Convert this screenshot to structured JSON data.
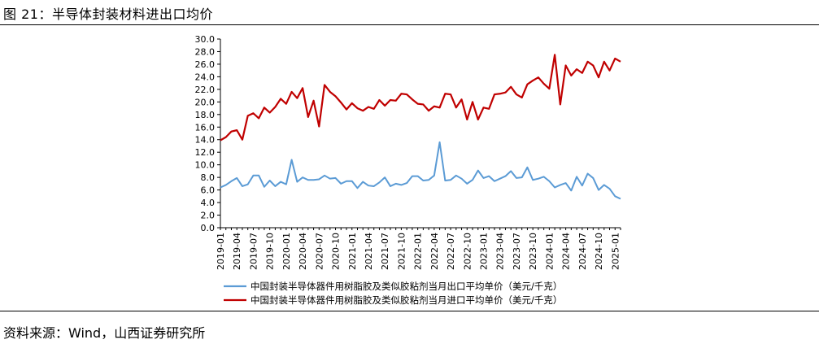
{
  "figure": {
    "title": "图 21：半导体封装材料进出口均价",
    "source": "资料来源：Wind，山西证券研究所"
  },
  "chart_data": {
    "type": "line",
    "title": "",
    "xlabel": "",
    "ylabel": "",
    "ylim": [
      0,
      30
    ],
    "yticks": [
      "0.0",
      "2.0",
      "4.0",
      "6.0",
      "8.0",
      "10.0",
      "12.0",
      "14.0",
      "16.0",
      "18.0",
      "20.0",
      "22.0",
      "24.0",
      "26.0",
      "28.0",
      "30.0"
    ],
    "x_start": "2019-01",
    "x_tick_labels": [
      "2019-01",
      "2019-04",
      "2019-07",
      "2019-10",
      "2020-01",
      "2020-04",
      "2020-07",
      "2020-10",
      "2021-01",
      "2021-04",
      "2021-07",
      "2021-10",
      "2022-01",
      "2022-04",
      "2022-07",
      "2022-10",
      "2023-01",
      "2023-04",
      "2023-07",
      "2023-10",
      "2024-01",
      "2024-04",
      "2024-07",
      "2024-10",
      "2025-01"
    ],
    "legend_position": "bottom",
    "grid": false,
    "series": [
      {
        "name": "中国封装半导体器件用树脂胶及类似胶粘剂当月出口平均单价（美元/千克）",
        "color": "#5b9bd5",
        "values": [
          6.4,
          6.8,
          7.4,
          7.9,
          6.6,
          6.9,
          8.3,
          8.3,
          6.5,
          7.5,
          6.6,
          7.3,
          6.9,
          10.8,
          7.3,
          8.0,
          7.6,
          7.6,
          7.7,
          8.3,
          7.8,
          7.9,
          7.0,
          7.4,
          7.4,
          6.3,
          7.3,
          6.7,
          6.6,
          7.2,
          8.0,
          6.6,
          7.0,
          6.8,
          7.1,
          8.2,
          8.2,
          7.5,
          7.6,
          8.3,
          13.6,
          7.5,
          7.6,
          8.3,
          7.8,
          7.0,
          7.6,
          9.1,
          7.9,
          8.2,
          7.4,
          7.8,
          8.2,
          9.0,
          7.9,
          8.0,
          9.6,
          7.6,
          7.8,
          8.1,
          7.4,
          6.4,
          6.8,
          7.1,
          5.9,
          8.1,
          6.7,
          8.6,
          7.9,
          6.0,
          6.8,
          6.2,
          5.0,
          4.6
        ]
      },
      {
        "name": "中国封装半导体器件用树脂胶及类似胶粘剂当月进口平均单价（美元/千克）",
        "color": "#c00000",
        "values": [
          13.9,
          14.4,
          15.3,
          15.5,
          14.0,
          17.8,
          18.2,
          17.4,
          19.1,
          18.3,
          19.2,
          20.5,
          19.7,
          21.6,
          20.6,
          22.2,
          17.6,
          20.2,
          16.1,
          22.7,
          21.6,
          20.9,
          19.9,
          18.8,
          19.8,
          19.0,
          18.6,
          19.2,
          18.9,
          20.3,
          19.4,
          20.3,
          20.2,
          21.3,
          21.2,
          20.4,
          19.7,
          19.6,
          18.6,
          19.3,
          19.1,
          21.3,
          21.2,
          19.1,
          20.4,
          17.2,
          20.0,
          17.2,
          19.1,
          18.9,
          21.2,
          21.3,
          21.5,
          22.4,
          21.2,
          20.7,
          22.8,
          23.4,
          23.9,
          22.9,
          22.1,
          27.5,
          19.6,
          25.8,
          24.2,
          25.2,
          24.6,
          26.4,
          25.8,
          23.9,
          26.4,
          25.0,
          26.9,
          26.4
        ]
      }
    ]
  }
}
